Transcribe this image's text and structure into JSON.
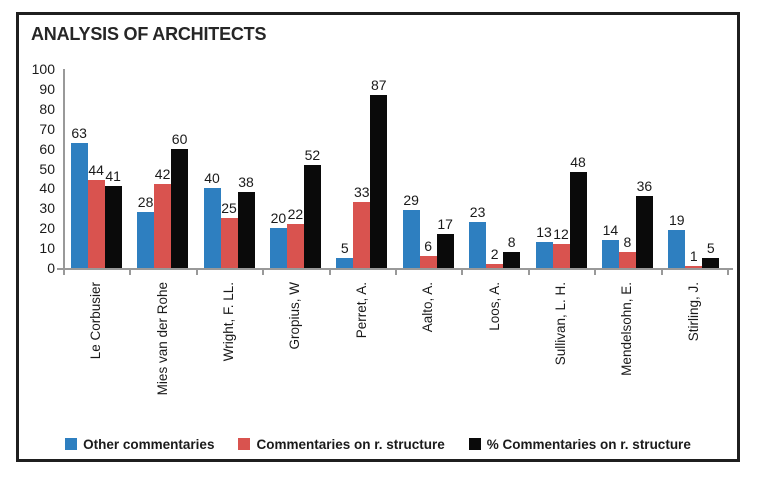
{
  "chart_data": {
    "type": "bar",
    "title": "ANALYSIS OF ARCHITECTS",
    "categories": [
      "Le Corbusier",
      "Mies van der Rohe",
      "Wright, F. LL.",
      "Gropius, W",
      "Perret, A.",
      "Aalto, A.",
      "Loos, A.",
      "Sullivan, L. H.",
      "Mendelsohn, E.",
      "Stirling, J."
    ],
    "series": [
      {
        "key": "other",
        "name": "Other commentaries",
        "color": "#2E7FC0",
        "values": [
          63,
          28,
          40,
          20,
          5,
          29,
          23,
          13,
          14,
          19
        ]
      },
      {
        "key": "structure",
        "name": "Commentaries on r. structure",
        "color": "#D9534F",
        "values": [
          44,
          42,
          25,
          22,
          33,
          6,
          2,
          12,
          8,
          1
        ]
      },
      {
        "key": "pct-structure",
        "name": "% Commentaries on r. structure",
        "color": "#0a0a0a",
        "values": [
          41,
          60,
          38,
          52,
          87,
          17,
          8,
          48,
          36,
          5
        ]
      }
    ],
    "ylabel": "",
    "xlabel": "",
    "ylim": [
      0,
      100
    ],
    "ytick_step": 10,
    "grid": false,
    "data_labels": true,
    "legend_position": "bottom"
  },
  "colors": {
    "axis": "#999999",
    "text": "#1a1a1a",
    "frame_border": "#1f1f1f",
    "background": "#ffffff"
  }
}
